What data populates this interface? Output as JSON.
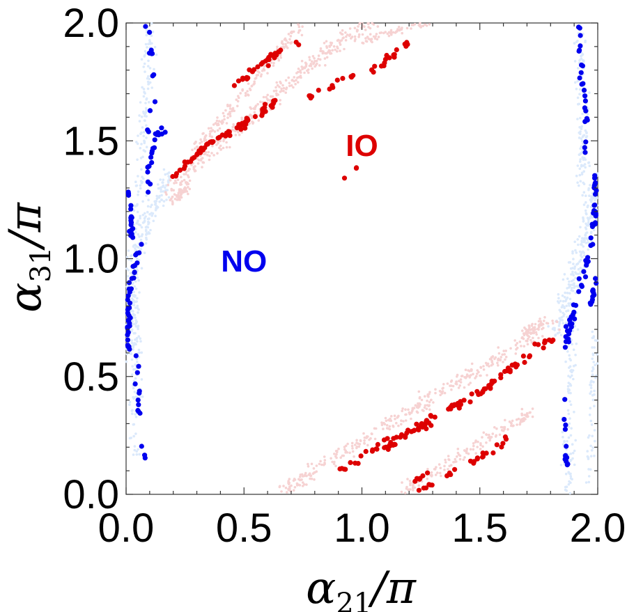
{
  "chart_data": {
    "type": "scatter",
    "title": "",
    "xlabel": {
      "prefix": "α",
      "sub": "21",
      "suffix": "/π"
    },
    "ylabel": {
      "prefix": "α",
      "sub": "31",
      "suffix": "/π"
    },
    "xlim": [
      0,
      2
    ],
    "ylim": [
      0,
      2
    ],
    "grid": false,
    "x_ticks": [
      {
        "value": 0.0,
        "label": "0.0"
      },
      {
        "value": 0.5,
        "label": "0.5"
      },
      {
        "value": 1.0,
        "label": "1.0"
      },
      {
        "value": 1.5,
        "label": "1.5"
      },
      {
        "value": 2.0,
        "label": "2.0"
      }
    ],
    "y_ticks": [
      {
        "value": 0.0,
        "label": "0.0"
      },
      {
        "value": 0.5,
        "label": "0.5"
      },
      {
        "value": 1.0,
        "label": "1.0"
      },
      {
        "value": 1.5,
        "label": "1.5"
      },
      {
        "value": 2.0,
        "label": "2.0"
      }
    ],
    "annotations": [
      {
        "text": "IO",
        "x": 1.0,
        "y": 1.47,
        "color": "#dd0000"
      },
      {
        "text": "NO",
        "x": 0.5,
        "y": 0.98,
        "color": "#0000ee"
      }
    ],
    "series": [
      {
        "name": "NO (light, all points)",
        "color": "#dbe9fb",
        "size": 1.8,
        "bands": [
          {
            "pts": [
              [
                0.01,
                0.6
              ],
              [
                0.03,
                0.95
              ],
              [
                0.06,
                1.12
              ],
              [
                0.1,
                1.2
              ],
              [
                0.16,
                1.28
              ],
              [
                0.18,
                1.35
              ]
            ],
            "spread": [
              0.05,
              0.07
            ],
            "count": 260,
            "seed": 11
          },
          {
            "pts": [
              [
                0.03,
                0.15
              ],
              [
                0.05,
                0.45
              ],
              [
                0.04,
                0.7
              ],
              [
                0.02,
                0.9
              ]
            ],
            "spread": [
              0.04,
              0.05
            ],
            "count": 110,
            "seed": 12
          },
          {
            "pts": [
              [
                0.05,
                1.2
              ],
              [
                0.07,
                1.45
              ],
              [
                0.09,
                1.75
              ],
              [
                0.1,
                2.0
              ]
            ],
            "spread": [
              0.04,
              0.05
            ],
            "count": 110,
            "seed": 13
          },
          {
            "pts": [
              [
                1.82,
                0.7
              ],
              [
                1.86,
                0.8
              ],
              [
                1.9,
                0.92
              ],
              [
                1.95,
                1.1
              ],
              [
                1.99,
                1.35
              ]
            ],
            "spread": [
              0.05,
              0.07
            ],
            "count": 240,
            "seed": 14
          },
          {
            "pts": [
              [
                1.88,
                0.0
              ],
              [
                1.87,
                0.3
              ],
              [
                1.88,
                0.55
              ],
              [
                1.9,
                0.75
              ]
            ],
            "spread": [
              0.04,
              0.06
            ],
            "count": 110,
            "seed": 15
          },
          {
            "pts": [
              [
                1.93,
                1.3
              ],
              [
                1.94,
                1.6
              ],
              [
                1.93,
                1.85
              ],
              [
                1.92,
                2.0
              ]
            ],
            "spread": [
              0.04,
              0.05
            ],
            "count": 120,
            "seed": 16
          },
          {
            "pts": [
              [
                1.96,
                0.05
              ],
              [
                1.98,
                0.4
              ],
              [
                1.99,
                0.7
              ]
            ],
            "spread": [
              0.03,
              0.06
            ],
            "count": 60,
            "seed": 17
          }
        ]
      },
      {
        "name": "IO (light, all points)",
        "color": "#f6d2d2",
        "size": 1.8,
        "bands": [
          {
            "pts": [
              [
                0.18,
                1.28
              ],
              [
                0.35,
                1.45
              ],
              [
                0.55,
                1.62
              ],
              [
                0.75,
                1.8
              ],
              [
                0.95,
                1.95
              ],
              [
                1.05,
                2.0
              ]
            ],
            "spread": [
              0.04,
              0.05
            ],
            "count": 340,
            "seed": 21
          },
          {
            "pts": [
              [
                0.28,
                1.45
              ],
              [
                0.5,
                1.7
              ],
              [
                0.65,
                1.88
              ],
              [
                0.75,
                2.0
              ]
            ],
            "spread": [
              0.03,
              0.04
            ],
            "count": 170,
            "seed": 22
          },
          {
            "pts": [
              [
                1.0,
                1.92
              ],
              [
                1.15,
                1.97
              ],
              [
                1.3,
                2.0
              ]
            ],
            "spread": [
              0.03,
              0.02
            ],
            "count": 60,
            "seed": 23
          },
          {
            "pts": [
              [
                0.65,
                0.0
              ],
              [
                0.95,
                0.2
              ],
              [
                1.2,
                0.35
              ],
              [
                1.45,
                0.5
              ],
              [
                1.65,
                0.62
              ],
              [
                1.82,
                0.74
              ]
            ],
            "spread": [
              0.04,
              0.05
            ],
            "count": 340,
            "seed": 24
          },
          {
            "pts": [
              [
                1.15,
                0.0
              ],
              [
                1.35,
                0.12
              ],
              [
                1.55,
                0.25
              ],
              [
                1.72,
                0.35
              ]
            ],
            "spread": [
              0.03,
              0.04
            ],
            "count": 150,
            "seed": 25
          },
          {
            "pts": [
              [
                0.2,
                1.24
              ],
              [
                0.26,
                1.3
              ]
            ],
            "spread": [
              0.03,
              0.03
            ],
            "count": 50,
            "seed": 26
          },
          {
            "pts": [
              [
                1.68,
                0.68
              ],
              [
                1.78,
                0.74
              ]
            ],
            "spread": [
              0.03,
              0.03
            ],
            "count": 50,
            "seed": 27
          }
        ]
      },
      {
        "name": "NO",
        "color": "#0000ee",
        "size": 3.6,
        "bands": [
          {
            "pts": [
              [
                0.01,
                1.3
              ],
              [
                0.02,
                1.2
              ],
              [
                0.02,
                1.1
              ]
            ],
            "spread": [
              0.012,
              0.05
            ],
            "count": 18,
            "seed": 31
          },
          {
            "pts": [
              [
                0.06,
                1.06
              ],
              [
                0.04,
                0.98
              ],
              [
                0.02,
                0.9
              ],
              [
                0.01,
                0.8
              ],
              [
                0.01,
                0.6
              ]
            ],
            "spread": [
              0.012,
              0.04
            ],
            "count": 40,
            "seed": 32
          },
          {
            "pts": [
              [
                0.04,
                0.6
              ],
              [
                0.05,
                0.4
              ],
              [
                0.06,
                0.25
              ],
              [
                0.08,
                0.15
              ]
            ],
            "spread": [
              0.012,
              0.05
            ],
            "count": 14,
            "seed": 33
          },
          {
            "pts": [
              [
                0.09,
                1.3
              ],
              [
                0.1,
                1.4
              ],
              [
                0.12,
                1.5
              ],
              [
                0.16,
                1.55
              ]
            ],
            "spread": [
              0.012,
              0.04
            ],
            "count": 20,
            "seed": 34
          },
          {
            "pts": [
              [
                0.09,
                1.55
              ],
              [
                0.12,
                1.7
              ],
              [
                0.11,
                1.85
              ],
              [
                0.09,
                2.0
              ]
            ],
            "spread": [
              0.012,
              0.05
            ],
            "count": 12,
            "seed": 35
          },
          {
            "pts": [
              [
                1.85,
                0.6
              ],
              [
                1.9,
                0.78
              ],
              [
                1.95,
                0.95
              ],
              [
                1.98,
                1.1
              ],
              [
                1.99,
                1.35
              ]
            ],
            "spread": [
              0.015,
              0.05
            ],
            "count": 55,
            "seed": 36
          },
          {
            "pts": [
              [
                1.87,
                0.5
              ],
              [
                1.86,
                0.3
              ],
              [
                1.87,
                0.1
              ]
            ],
            "spread": [
              0.012,
              0.05
            ],
            "count": 12,
            "seed": 37
          },
          {
            "pts": [
              [
                1.94,
                1.35
              ],
              [
                1.95,
                1.6
              ],
              [
                1.93,
                1.8
              ],
              [
                1.92,
                2.0
              ]
            ],
            "spread": [
              0.012,
              0.05
            ],
            "count": 24,
            "seed": 38
          },
          {
            "pts": [
              [
                1.97,
                0.8
              ],
              [
                1.99,
                0.9
              ]
            ],
            "spread": [
              0.012,
              0.04
            ],
            "count": 12,
            "seed": 39
          }
        ]
      },
      {
        "name": "IO",
        "color": "#dd0000",
        "size": 3.6,
        "bands": [
          {
            "pts": [
              [
                0.2,
                1.35
              ],
              [
                0.3,
                1.45
              ],
              [
                0.42,
                1.53
              ],
              [
                0.55,
                1.6
              ],
              [
                0.65,
                1.68
              ]
            ],
            "spread": [
              0.015,
              0.025
            ],
            "count": 70,
            "seed": 41
          },
          {
            "pts": [
              [
                0.45,
                1.73
              ],
              [
                0.55,
                1.8
              ],
              [
                0.65,
                1.88
              ],
              [
                0.75,
                1.93
              ]
            ],
            "spread": [
              0.015,
              0.02
            ],
            "count": 28,
            "seed": 42
          },
          {
            "pts": [
              [
                0.75,
                1.67
              ],
              [
                0.9,
                1.75
              ],
              [
                1.05,
                1.8
              ],
              [
                1.2,
                1.92
              ]
            ],
            "spread": [
              0.015,
              0.025
            ],
            "count": 30,
            "seed": 43
          },
          {
            "pts": [
              [
                0.88,
                1.3
              ],
              [
                1.0,
                1.4
              ]
            ],
            "spread": [
              0.012,
              0.02
            ],
            "count": 3,
            "seed": 44
          },
          {
            "pts": [
              [
                1.1,
                0.2
              ],
              [
                1.3,
                0.33
              ],
              [
                1.5,
                0.43
              ],
              [
                1.65,
                0.55
              ],
              [
                1.81,
                0.67
              ]
            ],
            "spread": [
              0.015,
              0.025
            ],
            "count": 85,
            "seed": 45
          },
          {
            "pts": [
              [
                0.9,
                0.1
              ],
              [
                1.1,
                0.22
              ],
              [
                1.3,
                0.3
              ]
            ],
            "spread": [
              0.015,
              0.03
            ],
            "count": 24,
            "seed": 46
          },
          {
            "pts": [
              [
                1.25,
                0.02
              ],
              [
                1.4,
                0.1
              ],
              [
                1.55,
                0.18
              ],
              [
                1.62,
                0.25
              ]
            ],
            "spread": [
              0.015,
              0.02
            ],
            "count": 25,
            "seed": 47
          },
          {
            "pts": [
              [
                1.2,
                0.05
              ],
              [
                1.3,
                0.1
              ]
            ],
            "spread": [
              0.015,
              0.02
            ],
            "count": 6,
            "seed": 48
          }
        ]
      }
    ]
  }
}
